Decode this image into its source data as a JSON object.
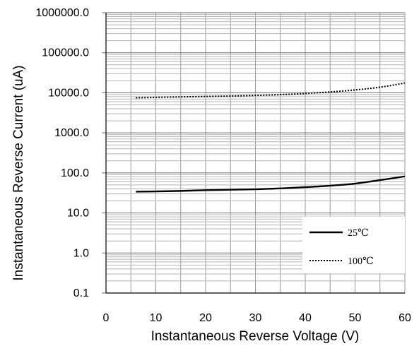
{
  "chart_data": {
    "type": "line",
    "xlabel": "Instantaneous Reverse Voltage (V)",
    "ylabel": "Instantaneous Reverse Current (uA)",
    "y_scale": "log",
    "xlim": [
      0,
      60
    ],
    "ylim": [
      0.1,
      1000000
    ],
    "x_ticks": [
      "0",
      "10",
      "20",
      "30",
      "40",
      "50",
      "60"
    ],
    "y_ticks": [
      "0.1",
      "1.0",
      "10.0",
      "100.0",
      "1000.0",
      "10000.0",
      "100000.0",
      "1000000.0"
    ],
    "grid": true,
    "legend_position": "bottom-right",
    "series": [
      {
        "name": "25℃",
        "line_style": "solid",
        "x": [
          6,
          10,
          15,
          20,
          25,
          30,
          35,
          40,
          45,
          50,
          55,
          60
        ],
        "y": [
          34,
          34.5,
          35.5,
          37,
          38,
          39,
          41,
          44,
          48,
          54,
          66,
          82
        ]
      },
      {
        "name": "100℃",
        "line_style": "dotted",
        "x": [
          6,
          10,
          15,
          20,
          25,
          30,
          35,
          40,
          45,
          50,
          55,
          60
        ],
        "y": [
          7500,
          7700,
          7900,
          8100,
          8300,
          8600,
          9000,
          9600,
          10500,
          11800,
          13800,
          17500
        ]
      }
    ]
  }
}
